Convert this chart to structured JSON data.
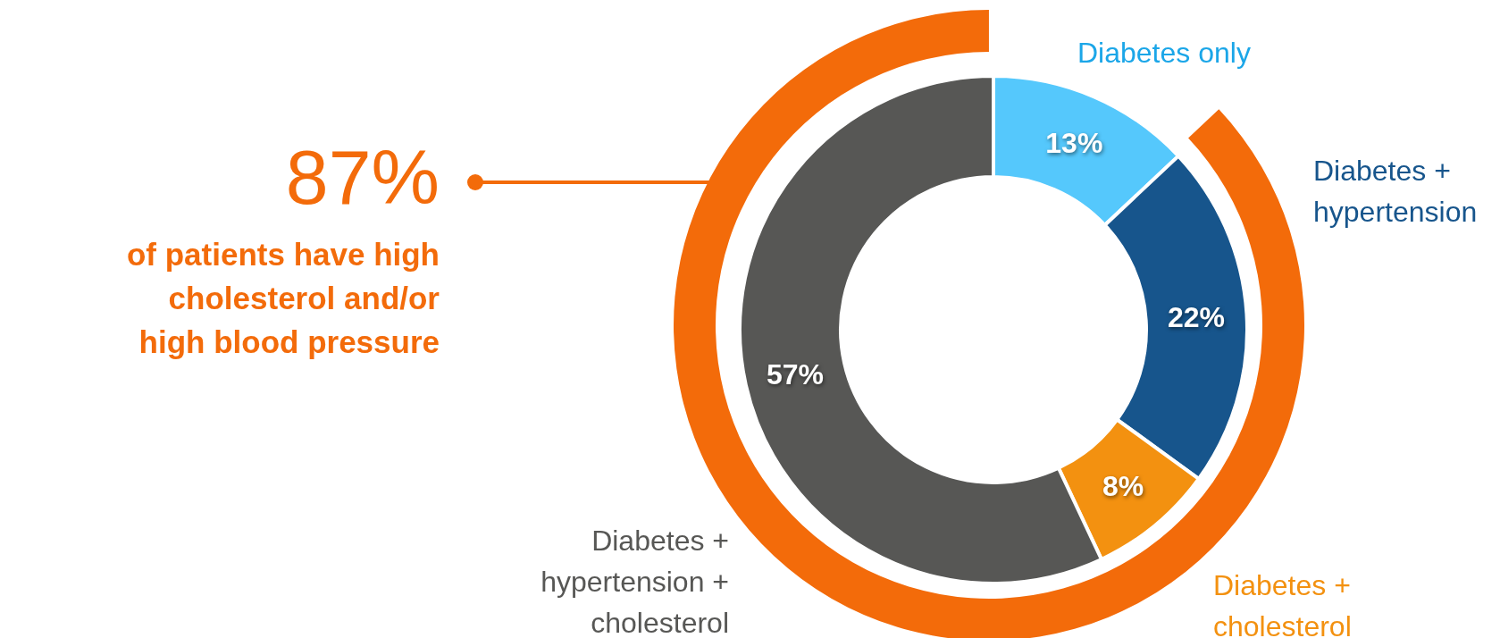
{
  "chart_data": {
    "type": "donut",
    "categories": [
      "Diabetes only",
      "Diabetes + hypertension",
      "Diabetes + cholesterol",
      "Diabetes + hypertension + cholesterol"
    ],
    "series": [
      {
        "values": [
          13,
          22,
          8,
          57
        ],
        "colors": [
          "#55c8fc",
          "#17558c",
          "#f39110",
          "#575755"
        ],
        "value_labels": [
          "13%",
          "22%",
          "8%",
          "57%"
        ]
      }
    ],
    "annotations": [
      "87%",
      "of patients have high cholesterol and/or high blood pressure"
    ]
  }
}
